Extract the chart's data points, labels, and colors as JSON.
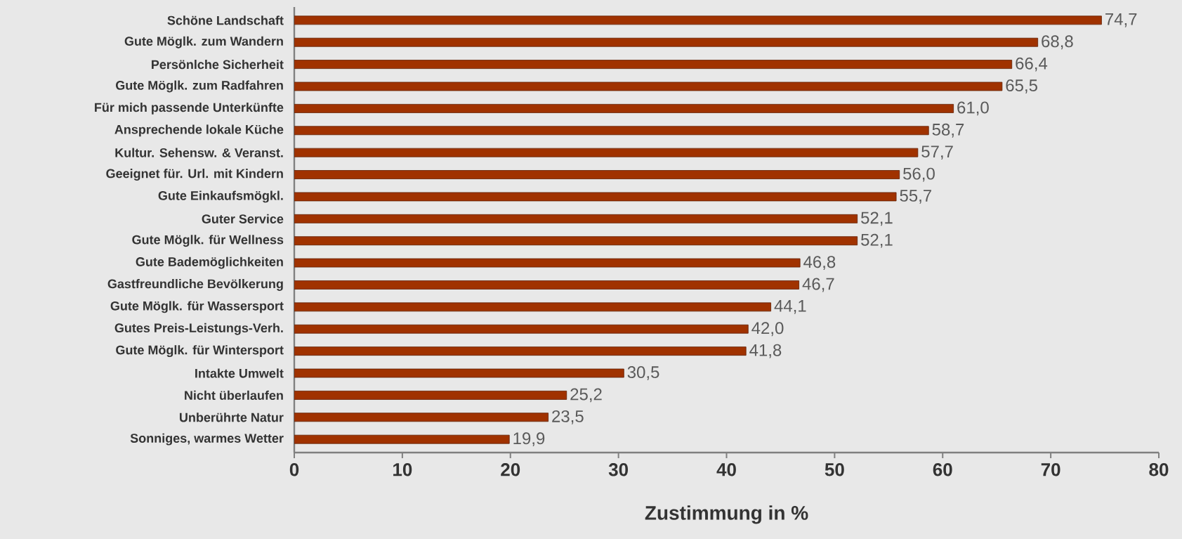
{
  "chart_data": {
    "type": "bar",
    "orientation": "horizontal",
    "xlabel": "Zustimmung in %",
    "categories": [
      "Schöne Landschaft",
      "Gute Möglk. zum Wandern",
      "Persönlche Sicherheit",
      "Gute Möglk. zum Radfahren",
      "Für mich passende Unterkünfte",
      "Ansprechende lokale Küche",
      "Kultur. Sehensw. & Veranst.",
      "Geeignet für. Url. mit Kindern",
      "Gute Einkaufsmögkl.",
      "Guter Service",
      "Gute Möglk. für Wellness",
      "Gute Bademöglichkeiten",
      "Gastfreundliche Bevölkerung",
      "Gute Möglk. für Wassersport",
      "Gutes Preis-Leistungs-Verh.",
      "Gute Möglk. für Wintersport",
      "Intakte Umwelt",
      "Nicht überlaufen",
      "Unberührte Natur",
      "Sonniges, warmes Wetter"
    ],
    "values": [
      74.7,
      68.8,
      66.4,
      65.5,
      61.0,
      58.7,
      57.7,
      56.0,
      55.7,
      52.1,
      52.1,
      46.8,
      46.7,
      44.1,
      42.0,
      41.8,
      30.5,
      25.2,
      23.5,
      19.9
    ],
    "value_labels": [
      "74,7",
      "68,8",
      "66,4",
      "65,5",
      "61,0",
      "58,7",
      "57,7",
      "56,0",
      "55,7",
      "52,1",
      "52,1",
      "46,8",
      "46,7",
      "44,1",
      "42,0",
      "41,8",
      "30,5",
      "25,2",
      "23,5",
      "19,9"
    ],
    "color": "#a03200",
    "xlim": [
      0,
      80
    ],
    "xticks": [
      0,
      10,
      20,
      30,
      40,
      50,
      60,
      70,
      80
    ]
  }
}
